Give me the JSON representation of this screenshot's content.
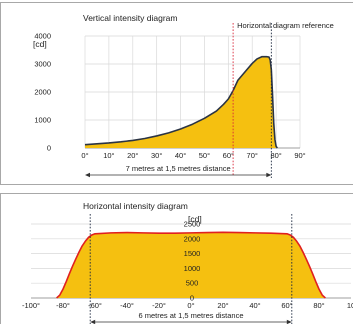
{
  "colors": {
    "fill": "#F5C010",
    "vertical_curve": "#2B3444",
    "horizontal_curve": "#E02020",
    "reference_line": "#D8283A",
    "grid": "#D9D9D9",
    "frame": "#A8A8A8",
    "arrow": "#333333"
  },
  "chart_data": [
    {
      "type": "area",
      "title": "Vertical intensity diagram",
      "ylabel": "[cd]",
      "xlabel": "",
      "x_ticks": [
        "0°",
        "10°",
        "20°",
        "30°",
        "40°",
        "50°",
        "60°",
        "70°",
        "80°",
        "90°"
      ],
      "y_ticks": [
        "0",
        "1000",
        "2000",
        "3000",
        "4000"
      ],
      "xlim": [
        0,
        90
      ],
      "ylim": [
        0,
        4000
      ],
      "grid": true,
      "series": [
        {
          "x": [
            0,
            5,
            10,
            15,
            20,
            25,
            30,
            35,
            40,
            45,
            50,
            55,
            58,
            60,
            62,
            64,
            66,
            68,
            70,
            72,
            74,
            76,
            77,
            77.5,
            78,
            78.5,
            79,
            79.5,
            80,
            80.5
          ],
          "y": [
            120,
            150,
            180,
            220,
            270,
            340,
            430,
            540,
            680,
            850,
            1060,
            1320,
            1560,
            1750,
            2050,
            2420,
            2620,
            2820,
            3020,
            3180,
            3260,
            3260,
            3250,
            3150,
            2800,
            1900,
            900,
            300,
            60,
            0
          ]
        }
      ],
      "reference_line": {
        "x": 62,
        "label": "Horizontal diagram reference"
      },
      "distance_marker": {
        "x_start": 0,
        "x_end": 78,
        "label": "7 metres at 1,5 metres distance"
      }
    },
    {
      "type": "area",
      "title": "Horizontal intensity diagram",
      "ylabel": "[cd]",
      "xlabel": "",
      "x_ticks": [
        "-100°",
        "-80°",
        "-60°",
        "-40°",
        "-20°",
        "0°",
        "20°",
        "40°",
        "60°",
        "80°",
        "10"
      ],
      "y_ticks": [
        "0",
        "500",
        "1000",
        "1500",
        "2000",
        "2500"
      ],
      "xlim": [
        -100,
        100
      ],
      "ylim": [
        0,
        2500
      ],
      "grid": true,
      "series": [
        {
          "x": [
            -84,
            -82,
            -80,
            -78,
            -76,
            -74,
            -72,
            -70,
            -68,
            -66,
            -64,
            -62,
            -60,
            -50,
            -40,
            -30,
            -20,
            -10,
            0,
            10,
            20,
            30,
            40,
            50,
            60,
            62,
            64,
            66,
            68,
            70,
            72,
            74,
            76,
            78,
            80,
            82,
            84
          ],
          "y": [
            0,
            100,
            300,
            550,
            820,
            1080,
            1320,
            1550,
            1760,
            1920,
            2050,
            2130,
            2170,
            2200,
            2210,
            2200,
            2190,
            2190,
            2200,
            2210,
            2220,
            2210,
            2200,
            2190,
            2170,
            2130,
            2050,
            1920,
            1760,
            1550,
            1320,
            1080,
            820,
            550,
            300,
            100,
            0
          ]
        }
      ],
      "distance_marker": {
        "x_start": -63,
        "x_end": 63,
        "label": "6 metres at 1,5 metres distance"
      }
    }
  ]
}
